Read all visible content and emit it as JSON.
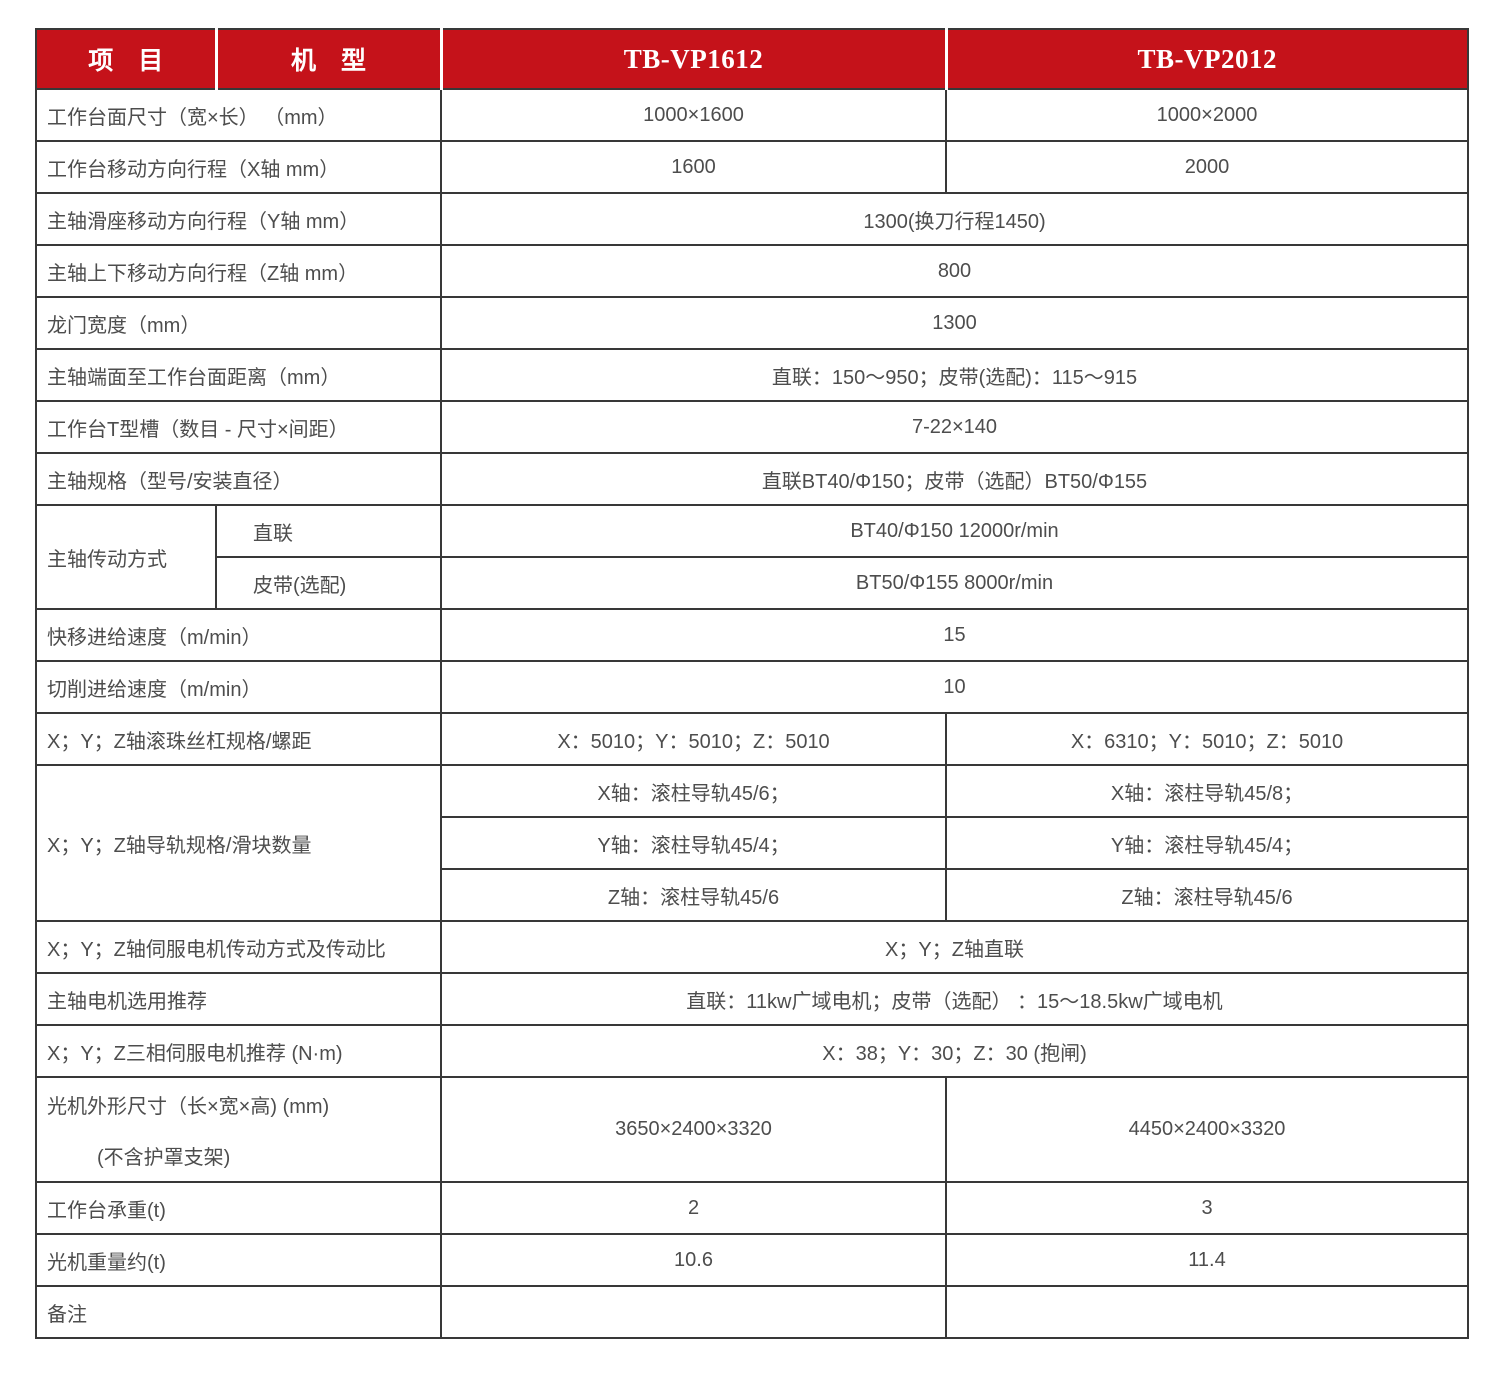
{
  "colors": {
    "header_bg": "#C5121A",
    "header_text": "#FFFFFF",
    "border": "#383838",
    "text": "#4D4D4D",
    "page_bg": "#FFFFFF"
  },
  "header": {
    "item_label": "项　目",
    "model_label": "机　型",
    "model1": "TB-VP1612",
    "model2": "TB-VP2012"
  },
  "rows": [
    {
      "label": "工作台面尺寸（宽×长） （mm）",
      "v1": "1000×1600",
      "v2": "1000×2000"
    },
    {
      "label": "工作台移动方向行程（X轴 mm）",
      "v1": "1600",
      "v2": "2000"
    },
    {
      "label": "主轴滑座移动方向行程（Y轴 mm）",
      "value": "1300(换刀行程1450)"
    },
    {
      "label": "主轴上下移动方向行程（Z轴 mm）",
      "value": "800"
    },
    {
      "label": "龙门宽度（mm）",
      "value": "1300"
    },
    {
      "label": "主轴端面至工作台面距离（mm）",
      "value": "直联：150～950；皮带(选配)：115～915"
    },
    {
      "label": "工作台T型槽（数目 - 尺寸×间距）",
      "value": "7-22×140"
    },
    {
      "label": "主轴规格（型号/安装直径）",
      "value": "直联BT40/Φ150；皮带（选配）BT50/Φ155"
    },
    {
      "label": "主轴传动方式",
      "sub": "直联",
      "value": "BT40/Φ150 12000r/min"
    },
    {
      "sub": "皮带(选配)",
      "value": "BT50/Φ155 8000r/min"
    },
    {
      "label": "快移进给速度（m/min）",
      "value": "15"
    },
    {
      "label": "切削进给速度（m/min）",
      "value": "10"
    },
    {
      "label": "X；Y；Z轴滚珠丝杠规格/螺距",
      "v1": "X：5010；Y：5010；Z：5010",
      "v2": "X：6310；Y：5010；Z：5010"
    },
    {
      "label": "X；Y；Z轴导轨规格/滑块数量",
      "v1": "X轴：滚柱导轨45/6；",
      "v2": "X轴：滚柱导轨45/8；"
    },
    {
      "v1": "Y轴：滚柱导轨45/4；",
      "v2": "Y轴：滚柱导轨45/4；"
    },
    {
      "v1": "Z轴：滚柱导轨45/6",
      "v2": "Z轴：滚柱导轨45/6"
    },
    {
      "label": "X；Y；Z轴伺服电机传动方式及传动比",
      "value": "X；Y；Z轴直联"
    },
    {
      "label": "主轴电机选用推荐",
      "value": "直联：11kw广域电机；皮带（选配） ：15～18.5kw广域电机"
    },
    {
      "label": "X；Y；Z三相伺服电机推荐 (N·m)",
      "value": "X：38；Y：30；Z：30 (抱闸)"
    },
    {
      "label_line1": "光机外形尺寸（长×宽×高) (mm)",
      "label_line2": "(不含护罩支架)",
      "v1": "3650×2400×3320",
      "v2": "4450×2400×3320"
    },
    {
      "label": "工作台承重(t)",
      "v1": "2",
      "v2": "3"
    },
    {
      "label": "光机重量约(t)",
      "v1": "10.6",
      "v2": "11.4"
    },
    {
      "label": "备注",
      "v1": "",
      "v2": ""
    }
  ]
}
